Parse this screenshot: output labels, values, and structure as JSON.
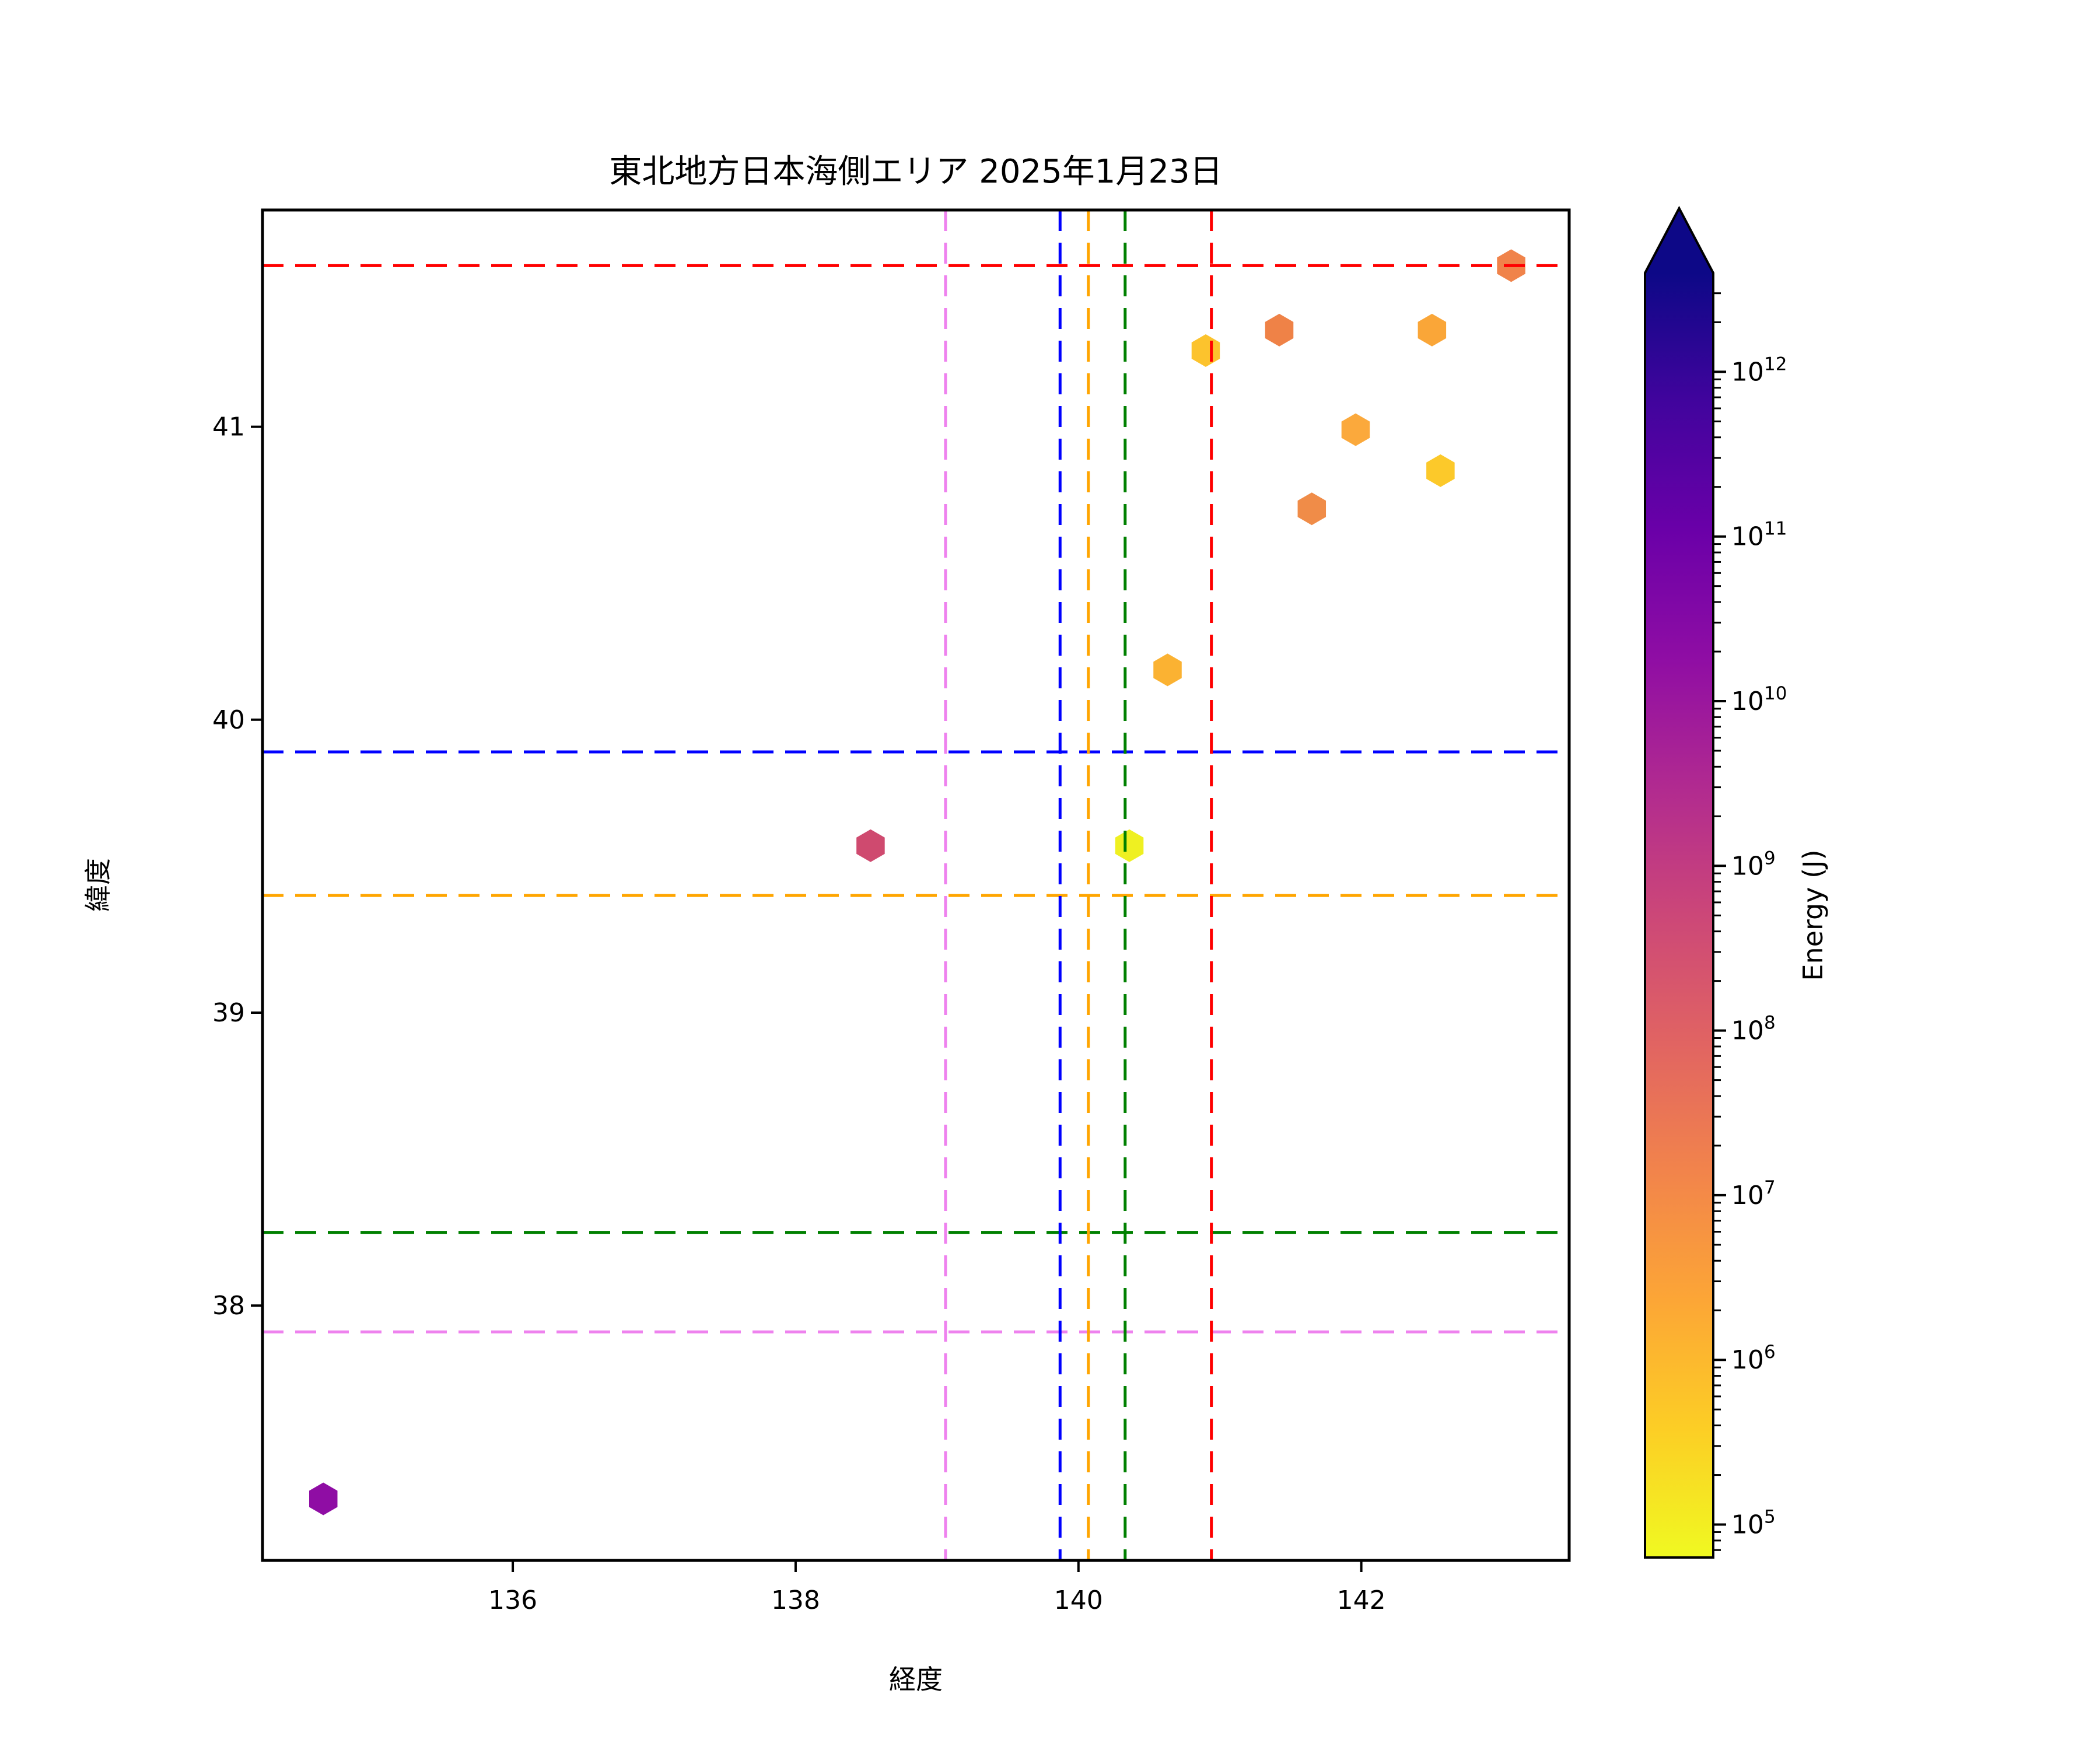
{
  "chart_data": {
    "type": "scatter",
    "title": "東北地方日本海側エリア 2025年1月23日",
    "xlabel": "経度",
    "ylabel": "緯度",
    "xlim": [
      134.23,
      143.47
    ],
    "ylim": [
      37.13,
      41.74
    ],
    "x_ticks": [
      136,
      138,
      140,
      142
    ],
    "y_ticks": [
      38,
      39,
      40,
      41
    ],
    "grid": false,
    "marker": "hexagon",
    "points": [
      {
        "lon": 143.06,
        "lat": 41.55,
        "color": "#f0834a",
        "energy_j_approx": 13000000.0
      },
      {
        "lon": 141.42,
        "lat": 41.33,
        "color": "#ef8247",
        "energy_j_approx": 12000000.0
      },
      {
        "lon": 142.5,
        "lat": 41.33,
        "color": "#faa638",
        "energy_j_approx": 2200000.0
      },
      {
        "lon": 140.9,
        "lat": 41.26,
        "color": "#fcc32d",
        "energy_j_approx": 600000.0
      },
      {
        "lon": 141.96,
        "lat": 40.99,
        "color": "#fba93c",
        "energy_j_approx": 2000000.0
      },
      {
        "lon": 142.56,
        "lat": 40.85,
        "color": "#fcc92a",
        "energy_j_approx": 500000.0
      },
      {
        "lon": 141.65,
        "lat": 40.72,
        "color": "#f08c48",
        "energy_j_approx": 9000000.0
      },
      {
        "lon": 140.63,
        "lat": 40.17,
        "color": "#fbb232",
        "energy_j_approx": 1300000.0
      },
      {
        "lon": 138.53,
        "lat": 39.57,
        "color": "#cf4a6f",
        "energy_j_approx": 500000000.0
      },
      {
        "lon": 140.36,
        "lat": 39.57,
        "color": "#eff021",
        "energy_j_approx": 80000.0
      },
      {
        "lon": 134.66,
        "lat": 37.34,
        "color": "#8f0da4",
        "energy_j_approx": 20000000000.0
      }
    ],
    "hlines": [
      {
        "lat": 41.55,
        "color": "#ff0000",
        "color_name": "red"
      },
      {
        "lat": 39.89,
        "color": "#0000ff",
        "color_name": "blue"
      },
      {
        "lat": 39.4,
        "color": "#ffa500",
        "color_name": "orange"
      },
      {
        "lat": 38.25,
        "color": "#008000",
        "color_name": "green"
      },
      {
        "lat": 37.91,
        "color": "#ee82ee",
        "color_name": "violet"
      }
    ],
    "vlines": [
      {
        "lon": 139.06,
        "color": "#ee82ee",
        "color_name": "violet"
      },
      {
        "lon": 139.87,
        "color": "#0000ff",
        "color_name": "blue"
      },
      {
        "lon": 140.07,
        "color": "#ffa500",
        "color_name": "orange"
      },
      {
        "lon": 140.33,
        "color": "#008000",
        "color_name": "green"
      },
      {
        "lon": 140.94,
        "color": "#ff0000",
        "color_name": "red"
      }
    ],
    "colorbar": {
      "label": "Energy (J)",
      "scale": "log",
      "tick_exponents": [
        5,
        6,
        7,
        8,
        9,
        10,
        11,
        12
      ],
      "tick_label_base": "10",
      "range_log10": [
        4.8,
        12.6
      ],
      "extend": "max",
      "colormap": "plasma reversed (yellow = low energy, dark navy = high energy)",
      "gradient_stops_top_to_bottom": [
        [
          0.0,
          "#0d0887"
        ],
        [
          0.1,
          "#41049d"
        ],
        [
          0.2,
          "#6a00a8"
        ],
        [
          0.3,
          "#8f0da4"
        ],
        [
          0.4,
          "#b12a90"
        ],
        [
          0.5,
          "#cc4778"
        ],
        [
          0.6,
          "#e16462"
        ],
        [
          0.7,
          "#f2844b"
        ],
        [
          0.8,
          "#fca636"
        ],
        [
          0.9,
          "#fcce25"
        ],
        [
          1.0,
          "#f0f921"
        ]
      ]
    }
  }
}
